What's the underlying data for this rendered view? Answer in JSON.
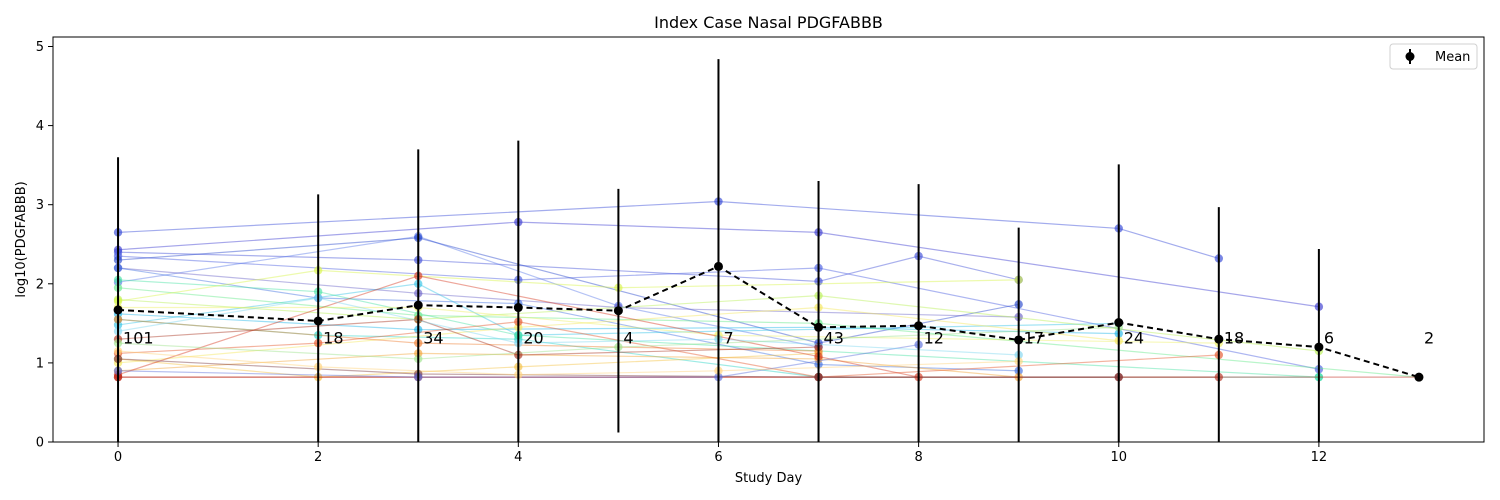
{
  "chart_data": {
    "type": "line",
    "title": "Index Case Nasal PDGFABBB",
    "xlabel": "Study Day",
    "ylabel": "log10(PDGFABBB)",
    "xlim": [
      -0.65,
      13.65
    ],
    "ylim": [
      0,
      5.12
    ],
    "xticks": [
      0,
      2,
      4,
      6,
      8,
      10,
      12
    ],
    "yticks": [
      0,
      1,
      2,
      3,
      4,
      5
    ],
    "grid": false,
    "legend": {
      "entries": [
        "Mean"
      ],
      "position": "top-right"
    },
    "mean": {
      "name": "Mean",
      "color": "#000000",
      "x": [
        0,
        2,
        3,
        4,
        5,
        6,
        7,
        8,
        9,
        10,
        11,
        12,
        13
      ],
      "y": [
        1.67,
        1.53,
        1.73,
        1.7,
        1.66,
        2.22,
        1.45,
        1.47,
        1.29,
        1.51,
        1.3,
        1.2,
        0.82
      ],
      "upper": [
        3.6,
        3.13,
        3.7,
        3.81,
        3.2,
        4.84,
        3.3,
        3.26,
        2.71,
        3.51,
        2.97,
        2.44,
        0.82
      ],
      "lower": [
        0.0,
        0.0,
        0.0,
        0.0,
        0.12,
        0.0,
        0.0,
        0.0,
        0.0,
        0.0,
        0.0,
        0.0,
        0.82
      ]
    },
    "count_labels": [
      {
        "x": 0,
        "text": "101"
      },
      {
        "x": 2,
        "text": "18"
      },
      {
        "x": 3,
        "text": "34"
      },
      {
        "x": 4,
        "text": "20"
      },
      {
        "x": 5,
        "text": "4"
      },
      {
        "x": 6,
        "text": "7"
      },
      {
        "x": 7,
        "text": "43"
      },
      {
        "x": 8,
        "text": "12"
      },
      {
        "x": 9,
        "text": "17"
      },
      {
        "x": 10,
        "text": "24"
      },
      {
        "x": 11,
        "text": "18"
      },
      {
        "x": 12,
        "text": "6"
      },
      {
        "x": 13,
        "text": "2"
      }
    ],
    "count_label_y": 1.32,
    "series": [
      {
        "color": "#3246d6",
        "x": [
          0,
          6,
          10,
          11
        ],
        "y": [
          2.65,
          3.04,
          2.7,
          2.32
        ]
      },
      {
        "color": "#3a3ad0",
        "x": [
          0,
          4,
          7,
          12
        ],
        "y": [
          2.43,
          2.78,
          2.65,
          1.71
        ]
      },
      {
        "color": "#4050d8",
        "x": [
          0,
          3,
          7,
          8,
          9
        ],
        "y": [
          2.4,
          2.3,
          2.03,
          2.35,
          2.05
        ]
      },
      {
        "color": "#4a5ee0",
        "x": [
          0,
          4,
          7,
          12
        ],
        "y": [
          2.35,
          2.05,
          2.2,
          0.92
        ]
      },
      {
        "color": "#5a7ae8",
        "x": [
          0,
          3,
          5,
          7
        ],
        "y": [
          2.02,
          2.6,
          1.72,
          1.2
        ]
      },
      {
        "color": "#2848cc",
        "x": [
          0,
          3,
          7,
          9
        ],
        "y": [
          2.3,
          2.58,
          1.25,
          1.74
        ]
      },
      {
        "color": "#6b63c8",
        "x": [
          0,
          3,
          5,
          9
        ],
        "y": [
          2.2,
          1.88,
          1.7,
          1.58
        ]
      },
      {
        "color": "#3f6fe0",
        "x": [
          0,
          2,
          4,
          7,
          9
        ],
        "y": [
          2.2,
          1.82,
          1.75,
          0.98,
          0.9
        ]
      },
      {
        "color": "#21b6e8",
        "x": [
          0,
          3,
          7,
          10
        ],
        "y": [
          1.62,
          1.42,
          1.45,
          1.37
        ]
      },
      {
        "color": "#35c4e6",
        "x": [
          0,
          3,
          4,
          10
        ],
        "y": [
          1.48,
          2.0,
          1.35,
          1.5
        ]
      },
      {
        "color": "#29d2c6",
        "x": [
          0,
          2,
          4,
          7,
          12
        ],
        "y": [
          1.55,
          1.35,
          1.3,
          0.82,
          0.82
        ]
      },
      {
        "color": "#49e3a4",
        "x": [
          0,
          2,
          4,
          12
        ],
        "y": [
          2.05,
          1.9,
          1.35,
          0.82
        ]
      },
      {
        "color": "#64e88a",
        "x": [
          0,
          3,
          7,
          13
        ],
        "y": [
          1.95,
          1.6,
          1.5,
          0.82
        ]
      },
      {
        "color": "#b9f055",
        "x": [
          0,
          3,
          7,
          12
        ],
        "y": [
          1.8,
          1.55,
          1.85,
          1.15
        ]
      },
      {
        "color": "#d8f44a",
        "x": [
          0,
          2,
          5,
          9
        ],
        "y": [
          1.78,
          2.17,
          1.95,
          2.05
        ]
      },
      {
        "color": "#eef065",
        "x": [
          0,
          3,
          6,
          11
        ],
        "y": [
          1.7,
          1.7,
          1.35,
          1.25
        ]
      },
      {
        "color": "#f5e65a",
        "x": [
          0,
          4,
          7,
          10
        ],
        "y": [
          1.0,
          1.45,
          1.7,
          1.28
        ]
      },
      {
        "color": "#f5c040",
        "x": [
          0,
          2,
          4,
          7
        ],
        "y": [
          1.05,
          0.82,
          0.95,
          1.12
        ]
      },
      {
        "color": "#f2a336",
        "x": [
          0,
          3,
          7,
          9
        ],
        "y": [
          0.9,
          1.12,
          1.05,
          0.82
        ]
      },
      {
        "color": "#ee7c2e",
        "x": [
          0,
          3,
          7
        ],
        "y": [
          1.55,
          1.25,
          1.15
        ]
      },
      {
        "color": "#e5562a",
        "x": [
          0,
          2,
          4,
          7,
          11
        ],
        "y": [
          1.12,
          1.25,
          1.52,
          0.82,
          1.1
        ]
      },
      {
        "color": "#d63a22",
        "x": [
          0,
          3,
          7,
          8
        ],
        "y": [
          0.85,
          2.1,
          1.08,
          0.82
        ]
      },
      {
        "color": "#a8341f",
        "x": [
          0,
          3,
          4,
          7
        ],
        "y": [
          1.3,
          1.55,
          1.1,
          1.2
        ]
      },
      {
        "color": "#b33020",
        "x": [
          0,
          3,
          7,
          10,
          11
        ],
        "y": [
          0.82,
          0.82,
          0.82,
          0.82,
          0.82
        ]
      },
      {
        "color": "#c0281a",
        "x": [
          0,
          13
        ],
        "y": [
          0.82,
          0.82
        ]
      },
      {
        "color": "#7a3a40",
        "x": [
          0,
          3,
          7,
          10
        ],
        "y": [
          1.05,
          0.86,
          0.82,
          0.82
        ]
      },
      {
        "color": "#5b6edc",
        "x": [
          0,
          3,
          6,
          8
        ],
        "y": [
          0.9,
          0.82,
          0.82,
          1.23
        ]
      },
      {
        "color": "#7fd6f0",
        "x": [
          0,
          2,
          4,
          6,
          9
        ],
        "y": [
          1.4,
          1.82,
          1.25,
          1.3,
          1.1
        ]
      },
      {
        "color": "#9ee38c",
        "x": [
          0,
          3,
          5,
          10
        ],
        "y": [
          1.25,
          1.05,
          1.2,
          1.45
        ]
      },
      {
        "color": "#ffd27a",
        "x": [
          0,
          2,
          4,
          6,
          9
        ],
        "y": [
          1.15,
          0.95,
          0.85,
          0.9,
          1.02
        ]
      }
    ]
  }
}
